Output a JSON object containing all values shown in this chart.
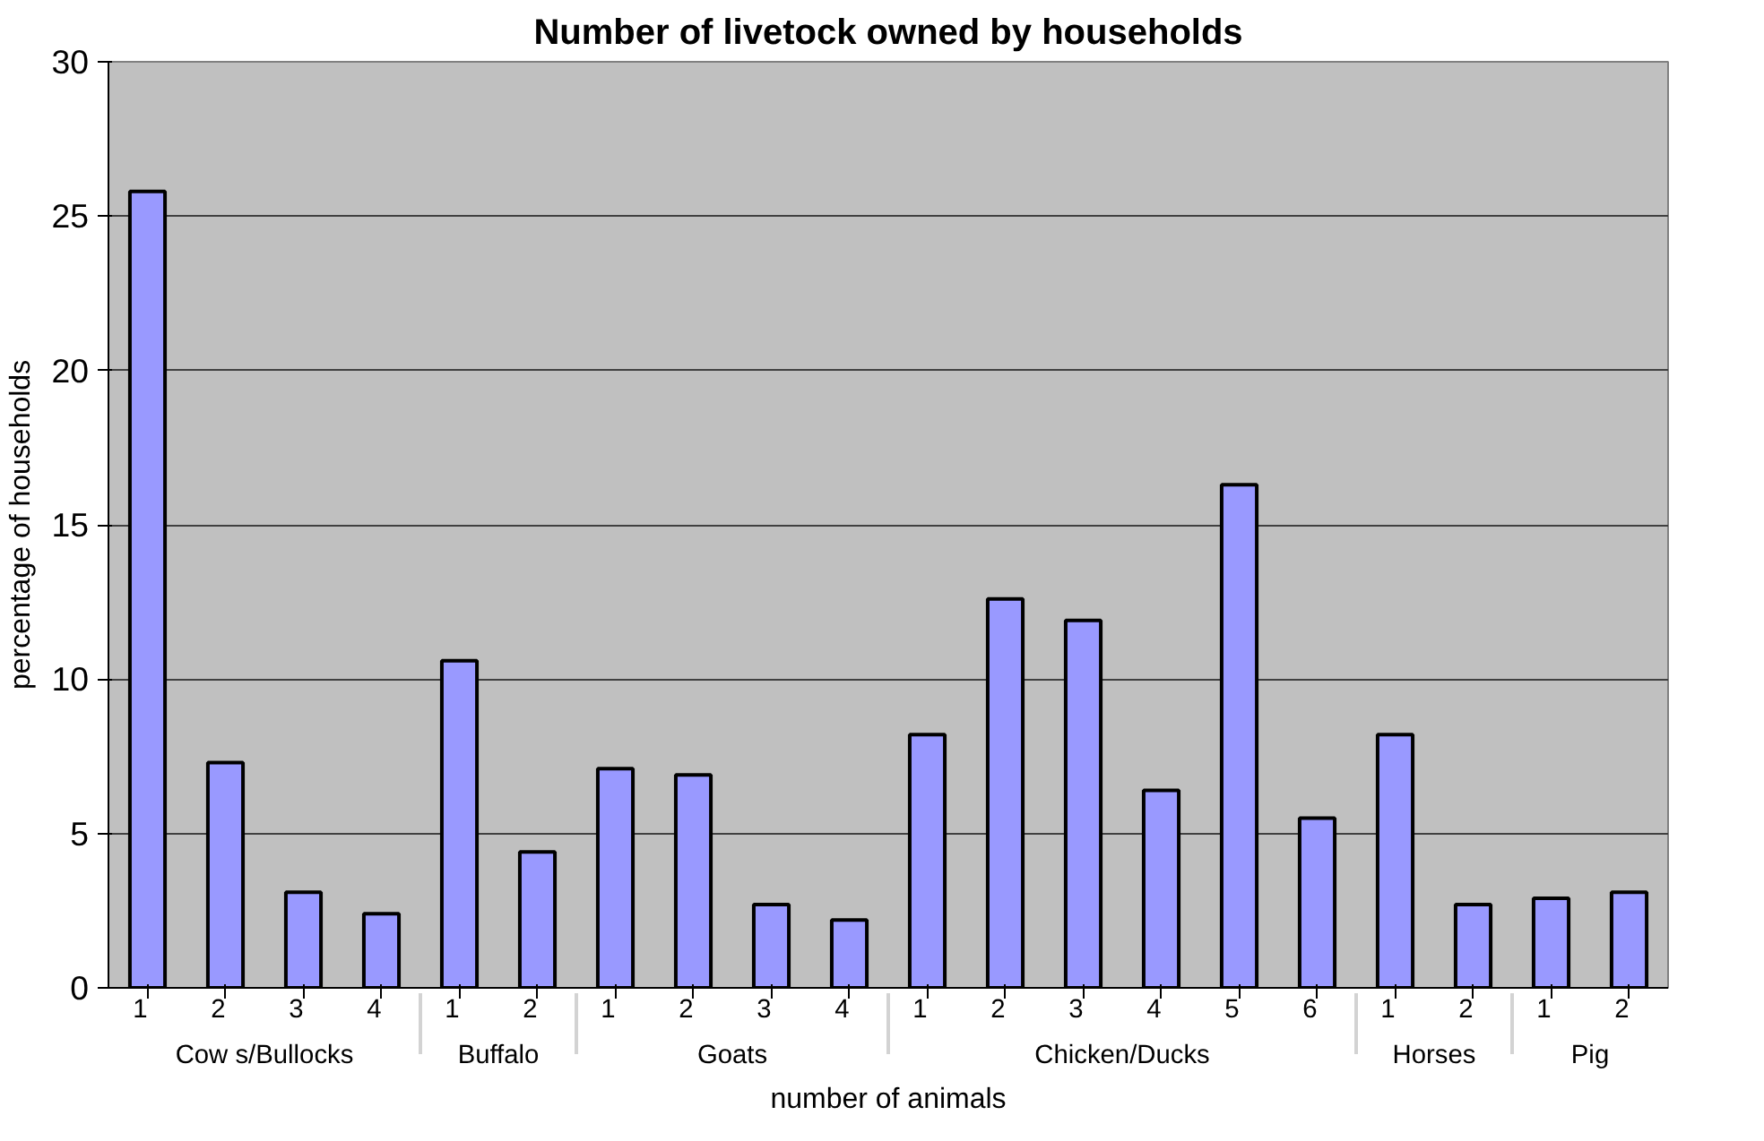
{
  "chart_data": {
    "type": "bar",
    "title": "Number of livetock owned by households",
    "xlabel": "number of animals",
    "ylabel": "percentage of households",
    "categories": [
      [
        "Cow s/Bullocks",
        "1"
      ],
      [
        null,
        "2"
      ],
      [
        null,
        "3"
      ],
      [
        null,
        "4"
      ],
      [
        "Buffalo",
        "1"
      ],
      [
        null,
        "2"
      ],
      [
        "Goats",
        "1"
      ],
      [
        null,
        "2"
      ],
      [
        null,
        "3"
      ],
      [
        null,
        "4"
      ],
      [
        "Chicken/Ducks",
        "1"
      ],
      [
        null,
        "2"
      ],
      [
        null,
        "3"
      ],
      [
        null,
        "4"
      ],
      [
        null,
        "5"
      ],
      [
        null,
        "6"
      ],
      [
        "Horses",
        "1"
      ],
      [
        null,
        "2"
      ],
      [
        "Pig",
        "1"
      ],
      [
        null,
        "2"
      ]
    ],
    "values": [
      25.8,
      7.3,
      3.1,
      2.4,
      10.6,
      4.4,
      7.1,
      6.9,
      2.7,
      2.2,
      8.2,
      12.6,
      11.9,
      6.4,
      16.3,
      5.5,
      8.2,
      2.7,
      2.9,
      3.1
    ],
    "color": "#9999ff",
    "ylim": [
      0,
      30
    ],
    "yticks": [
      0,
      5,
      10,
      15,
      20,
      25,
      30
    ],
    "grid": "y"
  }
}
